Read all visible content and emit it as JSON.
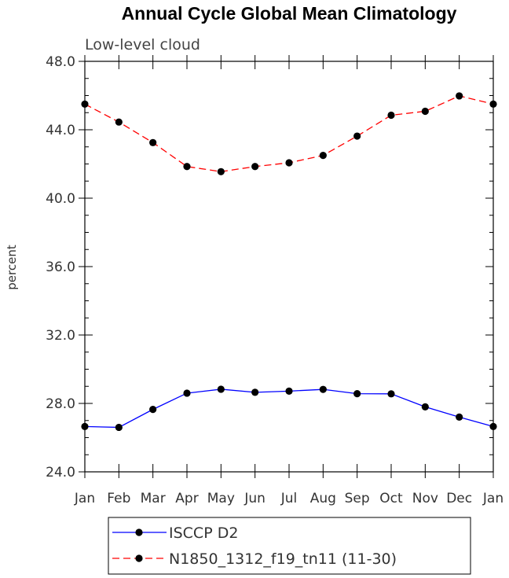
{
  "chart_data": {
    "type": "line",
    "title": "Annual Cycle Global Mean Climatology",
    "subtitle": "Low-level cloud",
    "ylabel": "percent",
    "xlabel": "",
    "categories": [
      "Jan",
      "Feb",
      "Mar",
      "Apr",
      "May",
      "Jun",
      "Jul",
      "Aug",
      "Sep",
      "Oct",
      "Nov",
      "Dec",
      "Jan"
    ],
    "ylim": [
      24.0,
      48.0
    ],
    "yticks": [
      "24.0",
      "28.0",
      "32.0",
      "36.0",
      "40.0",
      "44.0",
      "48.0"
    ],
    "series": [
      {
        "name": "ISCCP D2",
        "color": "#0000ff",
        "dash": "solid",
        "values": [
          26.65,
          26.6,
          27.65,
          28.6,
          28.83,
          28.65,
          28.72,
          28.82,
          28.57,
          28.56,
          27.8,
          27.2,
          26.65
        ]
      },
      {
        "name": "N1850_1312_f19_tn11 (11-30)",
        "color": "#ff0000",
        "dash": "dashed",
        "values": [
          45.5,
          44.45,
          43.25,
          41.85,
          41.55,
          41.85,
          42.07,
          42.5,
          43.63,
          44.85,
          45.08,
          45.98,
          45.5
        ]
      }
    ],
    "legend": [
      "ISCCP D2",
      "N1850_1312_f19_tn11 (11-30)"
    ],
    "legend_position": "bottom",
    "grid": false
  }
}
